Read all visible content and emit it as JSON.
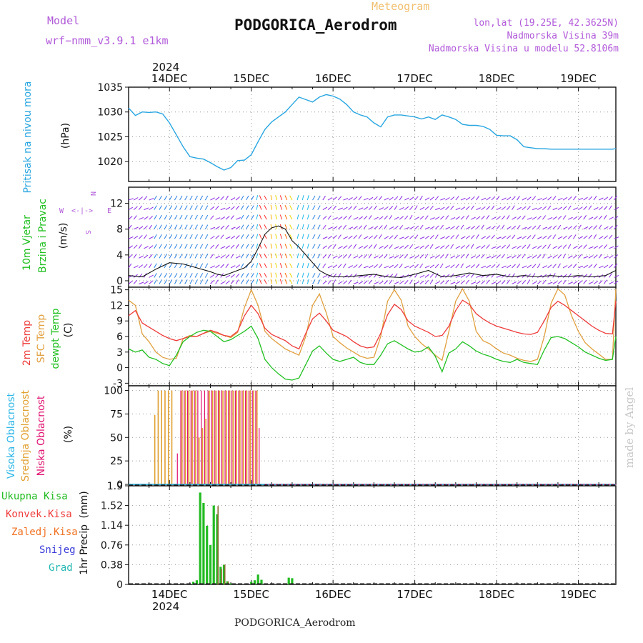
{
  "header": {
    "model_label": "Model",
    "model_name": "wrf−nmm_v3.9.1 e1km",
    "meteogram_label": "Meteogram",
    "station_title": "PODGORICA_Aerodrom",
    "lonlat": "lon,lat (19.25E, 42.3625N)",
    "elevation": "Nadmorska Visina 39m",
    "model_elevation": "Nadmorska Visina u modelu 52.8106m",
    "footer_station": "PODGORICA_Aerodrom",
    "watermark": "made by Angel"
  },
  "colors": {
    "pressure": "#29a6e0",
    "temp_2m": "#ee3c3c",
    "sfc_temp": "#e0a040",
    "dewpt": "#22c022",
    "cloud_high": "#29b6e6",
    "cloud_mid": "#e0a030",
    "cloud_low": "#e0106e",
    "rain_total": "#22bb22",
    "rain_conv": "#ee3c3c",
    "rain_frozen": "#f07020",
    "snow": "#3a3ad8",
    "hail": "#22b8b0",
    "wind_calm": "#8a2be2",
    "header_purple": "#b05ad8",
    "meteogram_orange": "#f0c070",
    "axis_blue": "#29a6e0",
    "axis_green": "#22c022"
  },
  "chart_data": [
    {
      "id": "pressure",
      "type": "line",
      "ylabel_lines": [
        "Pritisak na nivou mora"
      ],
      "unit": "(hPa)",
      "ylim": [
        1016,
        1035
      ],
      "yticks": [
        1020,
        1025,
        1030,
        1035
      ],
      "grid": true,
      "series": [
        {
          "x": [
            0,
            2,
            4,
            6,
            8,
            10,
            12,
            14,
            16,
            18,
            20,
            22,
            24,
            26,
            28,
            30,
            32,
            34,
            36,
            38,
            40,
            42,
            44,
            46,
            48,
            50,
            52,
            54,
            56,
            58,
            60,
            62,
            64,
            66,
            68,
            70,
            72,
            74,
            76,
            78,
            80,
            82,
            84,
            86,
            88,
            90,
            92,
            94,
            96,
            98,
            100,
            102,
            104,
            106,
            108,
            110,
            112,
            114,
            116,
            118,
            120,
            122,
            124,
            126,
            128,
            130,
            132,
            134,
            136,
            138,
            140,
            142,
            143
          ],
          "values": [
            1030.8,
            1029.3,
            1030.0,
            1029.9,
            1030.0,
            1029.6,
            1027.8,
            1025.4,
            1023.0,
            1021.0,
            1020.7,
            1020.5,
            1019.8,
            1019.0,
            1018.3,
            1018.8,
            1020.2,
            1020.3,
            1021.4,
            1024.0,
            1026.5,
            1028.0,
            1029.0,
            1030.0,
            1031.5,
            1033.0,
            1032.5,
            1032.0,
            1033.0,
            1033.5,
            1033.2,
            1032.6,
            1031.5,
            1030.0,
            1029.4,
            1029.0,
            1027.8,
            1027.0,
            1029.0,
            1029.4,
            1029.4,
            1029.2,
            1029.0,
            1028.6,
            1029.0,
            1028.5,
            1029.4,
            1029.0,
            1028.5,
            1027.5,
            1027.3,
            1027.3,
            1027.1,
            1026.5,
            1025.3,
            1025.2,
            1025.2,
            1024.4,
            1023.0,
            1022.8,
            1022.6,
            1022.6,
            1022.5,
            1022.5,
            1022.5,
            1022.5,
            1022.5,
            1022.5,
            1022.5,
            1022.5,
            1022.5,
            1022.5,
            1022.6
          ]
        }
      ]
    },
    {
      "id": "wind",
      "type": "line",
      "ylabel_lines": [
        "10m Vjetar",
        "Brzina i Pravac"
      ],
      "unit": "(m/s)",
      "ylim": [
        -1,
        14.5
      ],
      "yticks": [
        0,
        4,
        8,
        12
      ],
      "grid": true,
      "compass": [
        "N",
        "W",
        "E",
        "S"
      ],
      "series": [
        {
          "name": "speed",
          "x": [
            0,
            4,
            8,
            12,
            16,
            20,
            24,
            26,
            28,
            30,
            32,
            34,
            36,
            38,
            40,
            42,
            44,
            46,
            48,
            50,
            52,
            54,
            56,
            58,
            60,
            64,
            68,
            72,
            76,
            80,
            84,
            88,
            92,
            96,
            100,
            104,
            108,
            112,
            116,
            120,
            124,
            128,
            132,
            136,
            140,
            143
          ],
          "values": [
            0.8,
            0.6,
            1.8,
            2.8,
            2.6,
            2.0,
            1.4,
            1.0,
            0.8,
            1.2,
            1.6,
            2.0,
            3.0,
            5.0,
            7.2,
            8.2,
            8.5,
            8.0,
            6.2,
            5.2,
            4.0,
            2.8,
            1.6,
            1.0,
            0.6,
            0.6,
            0.8,
            1.0,
            0.6,
            0.5,
            1.0,
            1.6,
            0.6,
            0.8,
            1.2,
            0.8,
            1.0,
            0.6,
            0.8,
            0.6,
            0.8,
            0.6,
            0.8,
            0.6,
            0.8,
            1.6
          ]
        }
      ]
    },
    {
      "id": "temperature",
      "type": "line",
      "ylabel_lines": [
        "2m Temp",
        "SFC Temp",
        "dewpt Temp"
      ],
      "unit": "(C)",
      "ylim": [
        -3.5,
        15.5
      ],
      "yticks": [
        -3,
        0,
        3,
        6,
        9,
        12,
        15
      ],
      "grid": true,
      "series": [
        {
          "name": "2m Temp",
          "x": [
            0,
            2,
            4,
            6,
            8,
            10,
            12,
            14,
            16,
            18,
            20,
            22,
            24,
            26,
            28,
            30,
            32,
            34,
            36,
            38,
            40,
            42,
            44,
            46,
            48,
            50,
            52,
            54,
            56,
            58,
            60,
            62,
            64,
            66,
            68,
            70,
            72,
            74,
            76,
            78,
            80,
            82,
            84,
            86,
            88,
            90,
            92,
            94,
            96,
            98,
            100,
            102,
            104,
            106,
            108,
            110,
            112,
            114,
            116,
            118,
            120,
            122,
            124,
            126,
            128,
            130,
            132,
            134,
            136,
            138,
            140,
            142,
            143
          ],
          "values": [
            10.0,
            11.0,
            8.6,
            7.8,
            7.0,
            6.2,
            5.6,
            5.2,
            5.6,
            6.0,
            6.0,
            6.6,
            7.2,
            6.8,
            6.2,
            6.0,
            7.0,
            10.0,
            12.0,
            10.4,
            7.6,
            6.4,
            5.8,
            5.2,
            4.2,
            3.6,
            6.6,
            9.4,
            10.5,
            9.0,
            7.2,
            6.6,
            6.0,
            5.0,
            4.2,
            3.8,
            4.0,
            6.6,
            10.2,
            12.2,
            11.2,
            9.0,
            8.0,
            7.4,
            6.8,
            6.0,
            6.2,
            8.0,
            11.0,
            13.0,
            12.2,
            10.4,
            9.4,
            8.6,
            8.0,
            7.6,
            7.2,
            6.8,
            6.5,
            6.4,
            6.8,
            9.0,
            11.6,
            12.8,
            12.0,
            11.0,
            10.0,
            9.0,
            8.0,
            7.2,
            6.6,
            6.5,
            12.8
          ]
        },
        {
          "name": "SFC Temp",
          "x": [
            0,
            2,
            4,
            6,
            8,
            10,
            12,
            14,
            16,
            18,
            20,
            22,
            24,
            26,
            28,
            30,
            32,
            34,
            36,
            38,
            40,
            42,
            44,
            46,
            48,
            50,
            52,
            54,
            56,
            58,
            60,
            62,
            64,
            66,
            68,
            70,
            72,
            74,
            76,
            78,
            80,
            82,
            84,
            86,
            88,
            90,
            92,
            94,
            96,
            98,
            100,
            102,
            104,
            106,
            108,
            110,
            112,
            114,
            116,
            118,
            120,
            122,
            124,
            126,
            128,
            130,
            132,
            134,
            136,
            138,
            140,
            142,
            143
          ],
          "values": [
            13.0,
            12.0,
            6.5,
            5.0,
            3.0,
            2.0,
            1.6,
            1.8,
            5.6,
            6.2,
            6.0,
            6.6,
            7.0,
            6.6,
            6.2,
            5.8,
            6.8,
            11.6,
            15.0,
            12.0,
            7.0,
            5.6,
            4.6,
            3.6,
            3.0,
            2.4,
            6.0,
            12.0,
            14.2,
            10.6,
            6.0,
            4.8,
            3.8,
            3.0,
            2.2,
            1.8,
            2.0,
            6.0,
            12.8,
            15.0,
            13.0,
            8.0,
            6.0,
            4.6,
            3.6,
            2.4,
            1.4,
            7.0,
            12.8,
            15.2,
            12.8,
            7.0,
            5.2,
            4.6,
            3.6,
            2.8,
            2.4,
            1.8,
            1.4,
            1.2,
            1.6,
            6.0,
            12.4,
            15.2,
            14.0,
            10.0,
            7.0,
            4.8,
            3.6,
            2.6,
            1.6,
            1.6,
            15.2
          ]
        },
        {
          "name": "dewpt Temp",
          "x": [
            0,
            2,
            4,
            6,
            8,
            10,
            12,
            14,
            16,
            18,
            20,
            22,
            24,
            26,
            28,
            30,
            32,
            34,
            36,
            38,
            40,
            42,
            44,
            46,
            48,
            50,
            52,
            54,
            56,
            58,
            60,
            62,
            64,
            66,
            68,
            70,
            72,
            74,
            76,
            78,
            80,
            82,
            84,
            86,
            88,
            90,
            92,
            94,
            96,
            98,
            100,
            102,
            104,
            106,
            108,
            110,
            112,
            114,
            116,
            118,
            120,
            122,
            124,
            126,
            128,
            130,
            132,
            134,
            136,
            138,
            140,
            142,
            143
          ],
          "values": [
            3.6,
            3.0,
            3.4,
            2.0,
            1.6,
            0.8,
            0.4,
            2.4,
            5.0,
            6.0,
            6.8,
            7.2,
            7.0,
            6.0,
            5.0,
            5.4,
            6.2,
            7.0,
            8.0,
            5.6,
            1.6,
            0.0,
            -1.2,
            -2.2,
            -2.4,
            -2.0,
            0.6,
            3.2,
            4.2,
            2.8,
            1.6,
            1.2,
            1.6,
            2.0,
            1.0,
            0.6,
            0.6,
            2.4,
            4.6,
            5.2,
            4.4,
            3.6,
            3.0,
            3.2,
            4.0,
            2.2,
            -0.8,
            2.8,
            3.6,
            5.0,
            4.2,
            3.2,
            2.6,
            2.2,
            1.6,
            1.2,
            1.0,
            1.6,
            1.0,
            0.8,
            0.6,
            3.4,
            5.8,
            6.0,
            5.6,
            4.8,
            4.0,
            3.0,
            2.4,
            1.8,
            1.4,
            1.6,
            6.0
          ]
        }
      ]
    },
    {
      "id": "clouds",
      "type": "bar",
      "ylabel_lines": [
        "Visoka Oblacnost",
        "Srednja Oblacnost",
        "Niska Oblacnost"
      ],
      "unit": "(%)",
      "ylim": [
        0,
        105
      ],
      "yticks": [
        0,
        25,
        50,
        75,
        100
      ],
      "grid": true,
      "series": [
        {
          "name": "Srednja Oblacnost",
          "x": [
            8,
            9,
            10,
            11,
            12,
            13,
            16,
            17,
            18,
            19,
            20,
            21,
            22,
            23,
            24,
            25,
            26,
            27,
            28,
            29,
            30,
            31,
            32,
            33,
            34,
            35,
            36,
            37,
            38
          ],
          "values": [
            74,
            100,
            100,
            100,
            100,
            100,
            100,
            100,
            100,
            100,
            100,
            50,
            60,
            70,
            100,
            100,
            100,
            100,
            100,
            100,
            100,
            100,
            100,
            100,
            100,
            100,
            100,
            100,
            100
          ]
        },
        {
          "name": "Niska Oblacnost",
          "x": [
            14,
            15,
            16,
            17,
            18,
            19,
            20,
            21,
            22,
            23,
            24,
            25,
            26,
            27,
            28,
            29,
            30,
            31,
            32,
            33,
            34,
            35,
            36,
            37,
            38
          ],
          "values": [
            33,
            100,
            100,
            100,
            100,
            100,
            100,
            100,
            100,
            100,
            100,
            100,
            100,
            100,
            100,
            100,
            100,
            100,
            100,
            100,
            100,
            100,
            100,
            100,
            60
          ]
        },
        {
          "name": "Visoka Oblacnost",
          "x": [
            0,
            40,
            80,
            120,
            143
          ],
          "values": [
            0,
            0,
            0,
            0,
            0
          ]
        }
      ]
    },
    {
      "id": "precip",
      "type": "bar",
      "ylabel_lines": [
        "1hr Precip"
      ],
      "unit": "(mm)",
      "ylim": [
        0,
        1.9
      ],
      "yticks": [
        0,
        0.38,
        0.76,
        1.14,
        1.52,
        1.9
      ],
      "grid": true,
      "legend": [
        "Ukupna Kisa",
        "Konvek.Kisa",
        "Zaledj.Kisa",
        "Snijeg",
        "Grad"
      ],
      "series": [
        {
          "name": "Ukupna Kisa",
          "x": [
            19,
            20,
            21,
            22,
            23,
            24,
            25,
            26,
            27,
            28,
            29,
            30,
            31,
            36,
            37,
            38,
            39,
            47,
            48
          ],
          "values": [
            0.05,
            0.08,
            1.77,
            1.57,
            1.13,
            0.76,
            1.52,
            1.35,
            0.34,
            0.38,
            0.06,
            0.02,
            0.02,
            0.05,
            0.08,
            0.19,
            0.09,
            0.13,
            0.12
          ]
        },
        {
          "name": "Konvek.Kisa",
          "x": [
            26,
            27,
            28,
            29
          ],
          "values": [
            1.51,
            0.3,
            0.38,
            0.06
          ]
        }
      ]
    }
  ],
  "time_axis": {
    "start_hour": 0,
    "end_hour": 143,
    "year_label": "2024",
    "day_labels": [
      "14DEC",
      "15DEC",
      "16DEC",
      "17DEC",
      "18DEC",
      "19DEC"
    ],
    "day_hours": [
      12,
      36,
      60,
      84,
      108,
      132
    ]
  }
}
